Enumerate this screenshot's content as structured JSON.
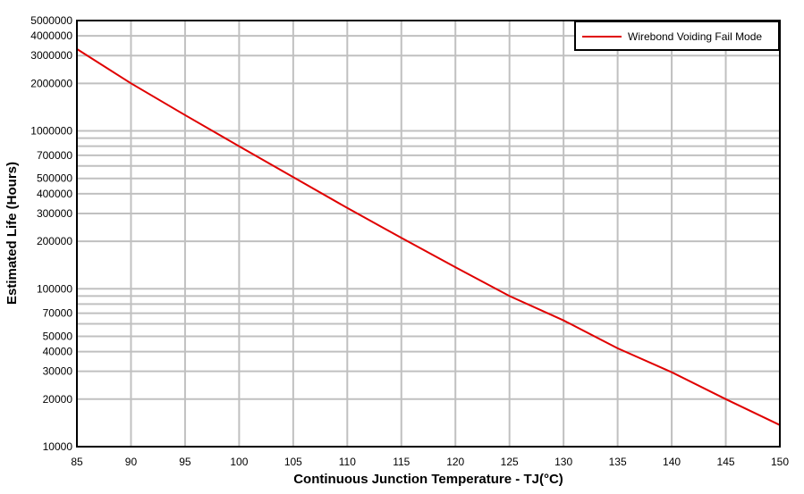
{
  "chart_data": {
    "type": "line",
    "title": "",
    "xlabel": "Continuous Junction Temperature - TJ(°C)",
    "ylabel": "Estimated Life (Hours)",
    "xlim": [
      85,
      150
    ],
    "ylim": [
      10000,
      5000000
    ],
    "yscale": "log",
    "grid": true,
    "legend_position": "upper right",
    "x_ticks": [
      "85",
      "90",
      "95",
      "100",
      "105",
      "110",
      "115",
      "120",
      "125",
      "130",
      "135",
      "140",
      "145",
      "150"
    ],
    "y_ticks": [
      "10000",
      "20000",
      "30000",
      "40000",
      "50000",
      "70000",
      "100000",
      "200000",
      "300000",
      "400000",
      "500000",
      "700000",
      "1000000",
      "2000000",
      "3000000",
      "4000000",
      "5000000"
    ],
    "y_grid_values": [
      20000,
      30000,
      40000,
      50000,
      60000,
      70000,
      80000,
      90000,
      100000,
      200000,
      300000,
      400000,
      500000,
      600000,
      700000,
      800000,
      900000,
      1000000,
      2000000,
      3000000,
      4000000
    ],
    "x": [
      85,
      90,
      95,
      100,
      105,
      110,
      115,
      120,
      125,
      130,
      135,
      140,
      145,
      150
    ],
    "series": [
      {
        "name": "Wirebond Voiding Fail Mode",
        "color": "#e00000",
        "values": [
          3300000,
          2000000,
          1260000,
          800000,
          510000,
          325000,
          210000,
          137000,
          90000,
          63000,
          42000,
          29600,
          20000,
          13700
        ]
      }
    ]
  },
  "legend": {
    "entries": [
      {
        "label": "Wirebond Voiding Fail Mode",
        "color": "#e00000"
      }
    ]
  },
  "colors": {
    "grid": "#c0c0c0",
    "frame": "#000000",
    "line": "#e00000"
  }
}
